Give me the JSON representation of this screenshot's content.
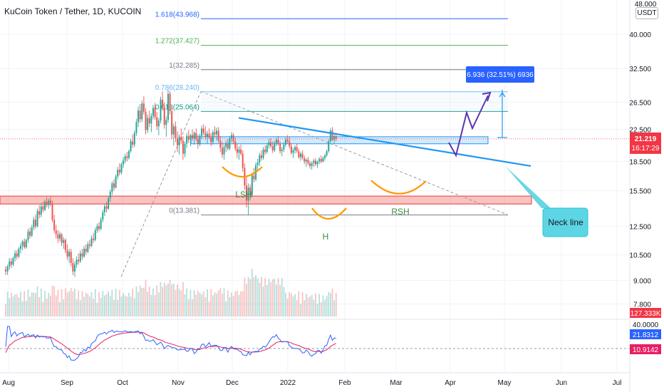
{
  "header": {
    "title": "KuCoin Token / Tether, 1D, KUCOIN",
    "currency": "USDT"
  },
  "colors": {
    "bull": "#26a69a",
    "bear": "#ef5350",
    "fib_1618": "#2962ff",
    "fib_1272": "#4caf50",
    "fib_1": "#787b86",
    "fib_0786": "#64b5f6",
    "fib_0618": "#089981",
    "fib_0": "#787b86",
    "neckline": "#2196f3",
    "shoulders": "#ff9800",
    "label_green": "#388e3c",
    "projection": "#5e35b1",
    "callout": "#4dd0e1",
    "price_tag": "#f23645",
    "rsi": "#2962ff",
    "rsi_ma": "#e91e63"
  },
  "chart_data": {
    "type": "candlestick",
    "symbol": "KuCoin Token / Tether",
    "timeframe": "1D",
    "exchange": "KUCOIN",
    "price_axis": {
      "scale": "log",
      "range": [
        7.2,
        48.0
      ],
      "ticks": [
        "40.000",
        "32.500",
        "26.500",
        "22.500",
        "18.500",
        "15.500",
        "12.500",
        "10.500",
        "9.000",
        "7.800"
      ],
      "top_label": "48.000"
    },
    "time_axis": {
      "ticks": [
        "Aug",
        "Sep",
        "Oct",
        "Nov",
        "Dec",
        "2022",
        "Feb",
        "Mar",
        "Apr",
        "May",
        "Jun",
        "Jul"
      ]
    },
    "last_price": {
      "value": "21.219",
      "countdown": "16:17:29"
    },
    "volume_label": "127.333K",
    "fibonacci": [
      {
        "ratio": "1.618",
        "price": 43.968,
        "label": "1.618(43.968)"
      },
      {
        "ratio": "1.272",
        "price": 37.427,
        "label": "1.272(37.427)"
      },
      {
        "ratio": "1",
        "price": 32.285,
        "label": "1(32.285)"
      },
      {
        "ratio": "0.786",
        "price": 28.24,
        "label": "0.786(28.240)"
      },
      {
        "ratio": "0.618",
        "price": 25.064,
        "label": "0.618(25.064)"
      },
      {
        "ratio": "0",
        "price": 13.381,
        "label": "0(13.381)"
      }
    ],
    "measure_label": "6.936 (32.51%) 6936",
    "annotations": {
      "left_shoulder": "LSH",
      "head": "H",
      "right_shoulder": "RSH",
      "neckline": "Neck line"
    },
    "support_zone": {
      "low": 14.3,
      "high": 15.0
    },
    "resistance_zone": {
      "low": 20.6,
      "high": 21.5
    },
    "candles_ohlc": [
      [
        9.6,
        9.8,
        9.3,
        9.5
      ],
      [
        9.5,
        9.9,
        9.3,
        9.8
      ],
      [
        9.8,
        10.3,
        9.6,
        10.1
      ],
      [
        10.1,
        10.3,
        9.7,
        9.9
      ],
      [
        9.9,
        10.4,
        9.8,
        10.3
      ],
      [
        10.3,
        10.8,
        10.1,
        10.6
      ],
      [
        10.6,
        10.8,
        10.2,
        10.4
      ],
      [
        10.4,
        11.0,
        10.3,
        10.9
      ],
      [
        10.9,
        11.3,
        10.6,
        11.1
      ],
      [
        11.1,
        11.5,
        10.8,
        11.4
      ],
      [
        11.4,
        11.6,
        10.9,
        11.0
      ],
      [
        11.0,
        11.6,
        10.9,
        11.5
      ],
      [
        11.5,
        12.3,
        11.3,
        12.1
      ],
      [
        12.1,
        12.4,
        11.6,
        11.8
      ],
      [
        11.8,
        12.6,
        11.7,
        12.4
      ],
      [
        12.4,
        13.2,
        12.2,
        13.0
      ],
      [
        13.0,
        13.4,
        12.3,
        12.5
      ],
      [
        12.5,
        13.9,
        12.4,
        13.7
      ],
      [
        13.7,
        14.2,
        13.1,
        13.4
      ],
      [
        13.4,
        14.4,
        13.2,
        14.1
      ],
      [
        14.1,
        14.5,
        13.6,
        13.8
      ],
      [
        13.8,
        14.7,
        13.7,
        14.5
      ],
      [
        14.5,
        14.9,
        14.0,
        14.2
      ],
      [
        14.2,
        14.8,
        13.9,
        14.6
      ],
      [
        14.6,
        15.0,
        14.1,
        14.3
      ],
      [
        14.3,
        14.6,
        12.8,
        13.0
      ],
      [
        13.0,
        13.4,
        12.0,
        12.2
      ],
      [
        12.2,
        12.6,
        11.6,
        11.9
      ],
      [
        11.9,
        12.2,
        11.3,
        11.6
      ],
      [
        11.6,
        12.1,
        11.4,
        11.9
      ],
      [
        11.9,
        12.0,
        11.1,
        11.3
      ],
      [
        11.3,
        11.7,
        10.9,
        11.5
      ],
      [
        11.5,
        11.6,
        10.6,
        10.8
      ],
      [
        10.8,
        11.2,
        10.2,
        10.4
      ],
      [
        10.4,
        10.9,
        10.0,
        10.7
      ],
      [
        10.7,
        10.9,
        9.8,
        10.0
      ],
      [
        10.0,
        10.3,
        9.3,
        9.5
      ],
      [
        9.5,
        10.1,
        9.2,
        9.9
      ],
      [
        9.9,
        10.4,
        9.7,
        10.2
      ],
      [
        10.2,
        10.6,
        9.9,
        10.1
      ],
      [
        10.1,
        10.8,
        10.0,
        10.6
      ],
      [
        10.6,
        10.9,
        10.2,
        10.4
      ],
      [
        10.4,
        11.1,
        10.3,
        10.9
      ],
      [
        10.9,
        11.2,
        10.5,
        10.7
      ],
      [
        10.7,
        11.4,
        10.6,
        11.2
      ],
      [
        11.2,
        11.5,
        10.9,
        11.1
      ],
      [
        11.1,
        11.8,
        11.0,
        11.6
      ],
      [
        11.6,
        12.0,
        11.3,
        11.5
      ],
      [
        11.5,
        12.4,
        11.4,
        12.2
      ],
      [
        12.2,
        12.7,
        12.0,
        12.5
      ],
      [
        12.5,
        12.8,
        12.1,
        12.3
      ],
      [
        12.3,
        13.2,
        12.2,
        13.0
      ],
      [
        13.0,
        13.8,
        12.8,
        13.6
      ],
      [
        13.6,
        14.3,
        13.3,
        14.1
      ],
      [
        14.1,
        14.5,
        13.6,
        13.9
      ],
      [
        13.9,
        15.0,
        13.8,
        14.8
      ],
      [
        14.8,
        15.6,
        14.5,
        15.4
      ],
      [
        15.4,
        16.4,
        15.1,
        16.2
      ],
      [
        16.2,
        16.6,
        15.5,
        15.8
      ],
      [
        15.8,
        17.1,
        15.7,
        16.9
      ],
      [
        16.9,
        17.9,
        16.6,
        17.6
      ],
      [
        17.6,
        18.3,
        17.0,
        17.3
      ],
      [
        17.3,
        18.4,
        17.1,
        18.2
      ],
      [
        18.2,
        19.0,
        17.8,
        18.6
      ],
      [
        18.6,
        19.4,
        18.3,
        19.1
      ],
      [
        19.1,
        19.6,
        18.5,
        18.9
      ],
      [
        18.9,
        19.9,
        18.7,
        19.7
      ],
      [
        19.7,
        21.2,
        19.5,
        20.9
      ],
      [
        20.9,
        21.8,
        20.1,
        20.5
      ],
      [
        20.5,
        22.3,
        20.2,
        22.0
      ],
      [
        22.0,
        24.0,
        21.6,
        23.5
      ],
      [
        23.5,
        25.8,
        22.8,
        25.2
      ],
      [
        25.2,
        26.2,
        23.4,
        23.9
      ],
      [
        23.9,
        26.8,
        23.5,
        26.3
      ],
      [
        26.3,
        27.5,
        24.6,
        25.0
      ],
      [
        25.0,
        25.6,
        21.8,
        22.4
      ],
      [
        22.4,
        24.6,
        22.0,
        24.1
      ],
      [
        24.1,
        25.2,
        22.8,
        23.3
      ],
      [
        23.3,
        24.8,
        22.1,
        24.4
      ],
      [
        24.4,
        26.1,
        23.9,
        25.6
      ],
      [
        25.6,
        26.4,
        23.8,
        24.2
      ],
      [
        24.2,
        25.0,
        22.4,
        22.9
      ],
      [
        22.9,
        24.1,
        21.7,
        23.7
      ],
      [
        23.7,
        27.4,
        23.3,
        26.9
      ],
      [
        26.9,
        28.3,
        25.2,
        25.8
      ],
      [
        25.8,
        26.5,
        22.6,
        23.1
      ],
      [
        23.1,
        24.3,
        21.5,
        23.8
      ],
      [
        23.8,
        28.6,
        23.4,
        27.9
      ],
      [
        27.9,
        28.4,
        24.6,
        25.1
      ],
      [
        25.1,
        25.6,
        21.2,
        21.8
      ],
      [
        21.8,
        23.3,
        20.4,
        22.9
      ],
      [
        22.9,
        23.6,
        20.8,
        21.3
      ],
      [
        21.3,
        22.2,
        19.6,
        20.4
      ],
      [
        20.4,
        21.8,
        19.3,
        21.5
      ],
      [
        21.5,
        22.6,
        20.6,
        21.0
      ],
      [
        21.0,
        21.6,
        18.7,
        19.4
      ],
      [
        19.4,
        20.9,
        19.0,
        20.6
      ],
      [
        20.6,
        22.0,
        20.1,
        21.6
      ],
      [
        21.6,
        22.4,
        20.7,
        21.1
      ],
      [
        21.1,
        21.9,
        20.3,
        21.7
      ],
      [
        21.7,
        22.5,
        21.0,
        21.3
      ],
      [
        21.3,
        22.2,
        20.5,
        22.0
      ],
      [
        22.0,
        22.6,
        20.9,
        21.2
      ],
      [
        21.2,
        21.8,
        20.0,
        20.6
      ],
      [
        20.6,
        21.9,
        20.3,
        21.6
      ],
      [
        21.6,
        23.0,
        21.2,
        22.6
      ],
      [
        22.6,
        23.2,
        21.7,
        22.0
      ],
      [
        22.0,
        22.9,
        21.1,
        21.5
      ],
      [
        21.5,
        22.3,
        20.6,
        21.9
      ],
      [
        21.9,
        22.6,
        21.2,
        21.4
      ],
      [
        21.4,
        22.0,
        20.3,
        20.8
      ],
      [
        20.8,
        22.4,
        20.5,
        22.1
      ],
      [
        22.1,
        22.9,
        21.4,
        21.8
      ],
      [
        21.8,
        22.7,
        21.0,
        22.3
      ],
      [
        22.3,
        22.8,
        20.7,
        21.0
      ],
      [
        21.0,
        21.6,
        19.6,
        20.1
      ],
      [
        20.1,
        20.8,
        18.9,
        19.3
      ],
      [
        19.3,
        20.5,
        18.7,
        20.2
      ],
      [
        20.2,
        21.0,
        19.6,
        20.7
      ],
      [
        20.7,
        21.2,
        19.8,
        20.0
      ],
      [
        20.0,
        21.6,
        19.8,
        21.3
      ],
      [
        21.3,
        22.1,
        20.8,
        21.7
      ],
      [
        21.7,
        22.0,
        20.6,
        20.9
      ],
      [
        20.9,
        21.4,
        19.7,
        20.0
      ],
      [
        20.0,
        20.6,
        18.9,
        19.5
      ],
      [
        19.5,
        20.3,
        18.7,
        19.9
      ],
      [
        19.9,
        20.5,
        19.2,
        19.4
      ],
      [
        19.4,
        19.8,
        17.4,
        17.8
      ],
      [
        17.8,
        18.3,
        15.6,
        16.0
      ],
      [
        16.0,
        16.9,
        14.0,
        14.6
      ],
      [
        14.6,
        16.2,
        13.4,
        15.8
      ],
      [
        15.8,
        16.1,
        14.6,
        15.1
      ],
      [
        15.1,
        17.3,
        14.9,
        17.0
      ],
      [
        17.0,
        17.8,
        16.3,
        16.6
      ],
      [
        16.6,
        18.4,
        16.4,
        18.1
      ],
      [
        18.1,
        18.8,
        17.6,
        18.4
      ],
      [
        18.4,
        19.5,
        18.0,
        19.2
      ],
      [
        19.2,
        19.8,
        18.6,
        18.9
      ],
      [
        18.9,
        20.2,
        18.7,
        19.9
      ],
      [
        19.9,
        20.4,
        19.3,
        19.6
      ],
      [
        19.6,
        20.7,
        19.4,
        20.4
      ],
      [
        20.4,
        21.2,
        20.0,
        20.8
      ],
      [
        20.8,
        21.3,
        20.1,
        20.3
      ],
      [
        20.3,
        20.9,
        19.5,
        19.8
      ],
      [
        19.8,
        21.0,
        19.6,
        20.7
      ],
      [
        20.7,
        21.4,
        20.3,
        21.1
      ],
      [
        21.1,
        21.6,
        20.4,
        20.6
      ],
      [
        20.6,
        20.9,
        19.4,
        19.7
      ],
      [
        19.7,
        20.2,
        19.1,
        19.9
      ],
      [
        19.9,
        20.8,
        19.6,
        20.5
      ],
      [
        20.5,
        21.4,
        20.2,
        21.1
      ],
      [
        21.1,
        21.7,
        20.6,
        20.9
      ],
      [
        20.9,
        21.5,
        20.0,
        20.3
      ],
      [
        20.3,
        20.7,
        19.3,
        19.5
      ],
      [
        19.5,
        20.1,
        18.9,
        19.8
      ],
      [
        19.8,
        20.4,
        19.4,
        20.2
      ],
      [
        20.2,
        20.6,
        19.5,
        19.7
      ],
      [
        19.7,
        20.0,
        18.8,
        19.0
      ],
      [
        19.0,
        19.6,
        18.6,
        19.4
      ],
      [
        19.4,
        19.8,
        18.7,
        18.9
      ],
      [
        18.9,
        19.2,
        18.2,
        18.5
      ],
      [
        18.5,
        18.9,
        17.9,
        18.7
      ],
      [
        18.7,
        19.0,
        18.1,
        18.3
      ],
      [
        18.3,
        18.6,
        17.7,
        18.0
      ],
      [
        18.0,
        18.5,
        17.6,
        18.3
      ],
      [
        18.3,
        18.8,
        17.9,
        18.6
      ],
      [
        18.6,
        18.9,
        18.0,
        18.2
      ],
      [
        18.2,
        18.6,
        17.8,
        18.5
      ],
      [
        18.5,
        19.0,
        18.2,
        18.8
      ],
      [
        18.8,
        19.2,
        18.3,
        18.5
      ],
      [
        18.5,
        19.1,
        18.4,
        18.9
      ],
      [
        18.9,
        19.4,
        18.6,
        19.2
      ],
      [
        19.2,
        19.9,
        19.0,
        19.7
      ],
      [
        19.7,
        21.2,
        19.5,
        20.9
      ],
      [
        20.9,
        22.6,
        20.6,
        22.3
      ],
      [
        22.3,
        22.8,
        20.9,
        21.1
      ],
      [
        21.1,
        21.9,
        20.6,
        21.6
      ],
      [
        21.6,
        22.0,
        20.9,
        21.2
      ]
    ],
    "rsi": {
      "value": "21.8312",
      "ma_value": "10.9142",
      "top_label": "40.0000"
    }
  }
}
